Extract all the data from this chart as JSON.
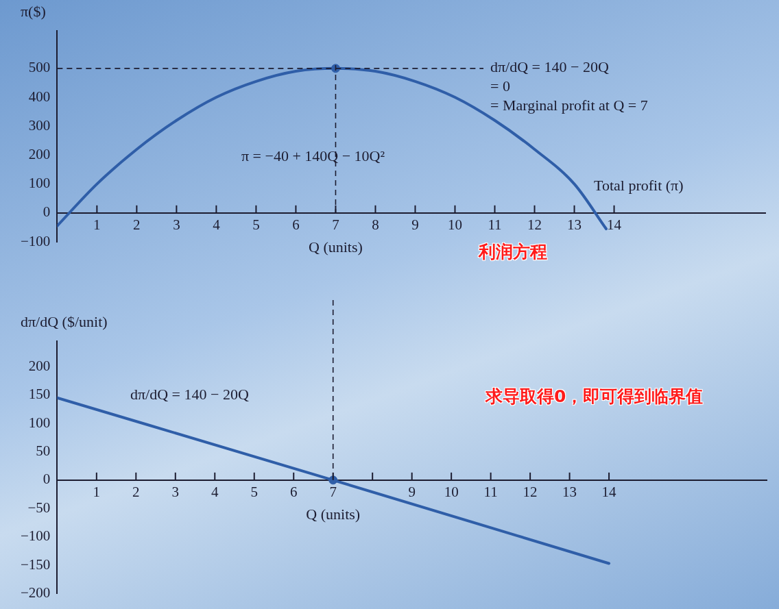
{
  "chart_data": [
    {
      "type": "line",
      "ylabel": "π($)",
      "xlabel": "Q (units)",
      "xlim": [
        0,
        17.8
      ],
      "ylim": [
        -100,
        630
      ],
      "xticks": [
        1,
        2,
        3,
        4,
        5,
        6,
        7,
        8,
        9,
        10,
        11,
        12,
        13,
        14
      ],
      "yticks": [
        -100,
        0,
        100,
        200,
        300,
        400,
        500
      ],
      "grid": false,
      "legend": false,
      "series": [
        {
          "color": "#2f5ea8",
          "x": [
            0,
            1,
            2,
            3,
            4,
            5,
            6,
            7,
            8,
            9,
            10,
            11,
            12,
            13,
            13.8
          ],
          "values": [
            -45,
            100,
            220,
            320,
            400,
            455,
            490,
            500,
            490,
            455,
            400,
            320,
            220,
            100,
            -55
          ]
        },
        {
          "type": "scatter",
          "color": "#2f5ea8",
          "x": [
            7
          ],
          "values": [
            500
          ]
        }
      ],
      "ref_lines": [
        {
          "axis": "y",
          "value": 500,
          "line_style": "dashed",
          "color": "#1c1c30"
        },
        {
          "axis": "x",
          "value": 7,
          "line_style": "dashed",
          "color": "#1c1c30"
        }
      ],
      "annotations": [
        "dπ/dQ = 140 − 20Q\n= 0\n= Marginal profit at Q = 7",
        "π = −40 + 140Q − 10Q²",
        "Total profit (π)",
        "利润方程"
      ]
    },
    {
      "type": "line",
      "ylabel": "dπ/dQ ($/unit)",
      "xlabel": "Q (units)",
      "xlim": [
        0,
        18
      ],
      "ylim": [
        -200,
        245
      ],
      "xticks": [
        1,
        2,
        3,
        4,
        5,
        6,
        7,
        {
          "value": 8,
          "label": null
        },
        9,
        10,
        11,
        12,
        13,
        14
      ],
      "yticks": [
        -200,
        -150,
        -100,
        -50,
        0,
        50,
        100,
        150,
        200
      ],
      "grid": false,
      "legend": false,
      "series": [
        {
          "color": "#2f5ea8",
          "x": [
            0,
            7,
            14
          ],
          "values": [
            145,
            0,
            -147
          ]
        },
        {
          "type": "scatter",
          "color": "#2f5ea8",
          "x": [
            7
          ],
          "values": [
            0
          ]
        }
      ],
      "ref_lines": [
        {
          "axis": "x",
          "value": 7,
          "line_style": "dashed",
          "color": "#1c1c30"
        }
      ],
      "annotations": [
        "dπ/dQ = 140 − 20Q",
        "求导取得0，即可得到临界值"
      ]
    }
  ]
}
